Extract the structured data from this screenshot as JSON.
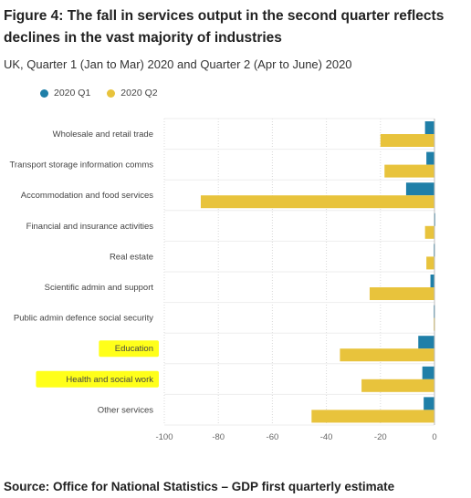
{
  "title": "Figure 4: The fall in services output in the second quarter reflects declines in the vast majority of industries",
  "subtitle": "UK, Quarter 1 (Jan to Mar) 2020 and Quarter 2 (Apr to June) 2020",
  "source": "Source: Office for National Statistics – GDP first quarterly estimate",
  "chart_data": {
    "type": "bar",
    "orientation": "horizontal",
    "categories": [
      "Wholesale and retail trade",
      "Transport storage information comms",
      "Accommodation and food services",
      "Financial and insurance activities",
      "Real estate",
      "Scientific admin and support",
      "Public admin defence social security",
      "Education",
      "Health and social work",
      "Other services"
    ],
    "series": [
      {
        "name": "2020 Q1",
        "color": "#1f7fa8",
        "values": [
          -3.5,
          -3,
          -10.5,
          -0.2,
          -0.3,
          -1.5,
          -0.3,
          -6,
          -4.5,
          -4
        ]
      },
      {
        "name": "2020 Q2",
        "color": "#e8c33c",
        "values": [
          -20,
          -18.5,
          -86.5,
          -3.5,
          -3,
          -24,
          -0.3,
          -35,
          -27,
          -45.5
        ]
      }
    ],
    "xlim": [
      -100,
      0
    ],
    "xticks": [
      "-100",
      "-80",
      "-60",
      "-40",
      "-20",
      "0"
    ],
    "grid": true,
    "legend": "top-left",
    "highlighted_categories": [
      "Education",
      "Health and social work"
    ],
    "highlight_color": "#ffff1a"
  }
}
